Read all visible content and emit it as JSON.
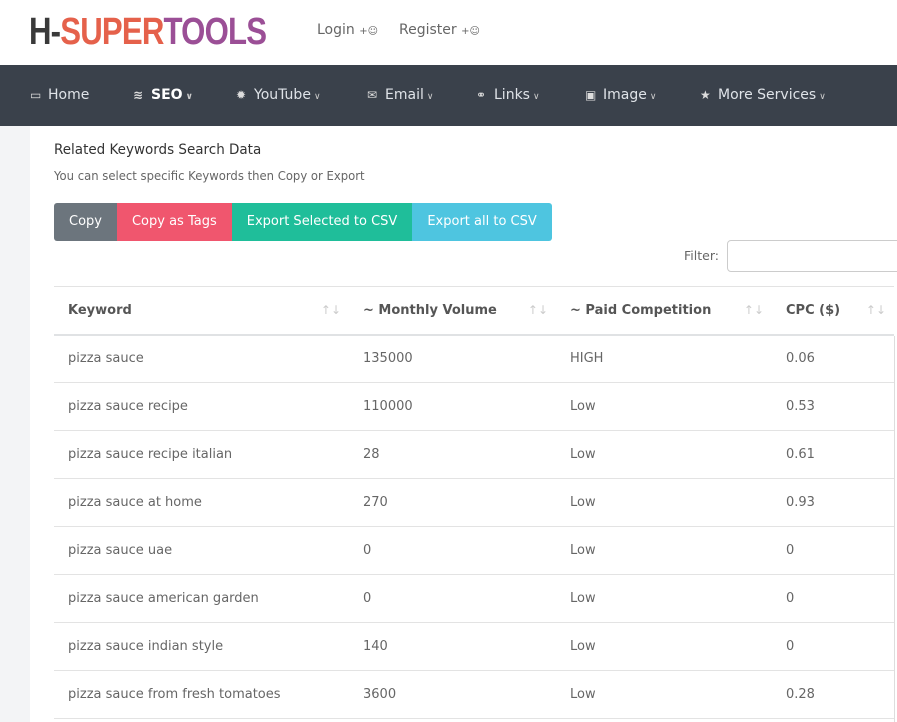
{
  "brand": {
    "part1": "H-",
    "part2": "SUPER",
    "part3": "TOOLS"
  },
  "auth": {
    "login": "Login",
    "register": "Register"
  },
  "nav": [
    {
      "label": "Home",
      "icon": "monitor-icon"
    },
    {
      "label": "SEO",
      "icon": "chart-icon",
      "active": true
    },
    {
      "label": "YouTube",
      "icon": "gear-icon"
    },
    {
      "label": "Email",
      "icon": "envelope-icon"
    },
    {
      "label": "Links",
      "icon": "link-icon"
    },
    {
      "label": "Image",
      "icon": "image-icon"
    },
    {
      "label": "More Services",
      "icon": "star-icon"
    }
  ],
  "section": {
    "title": "Related Keywords Search Data",
    "subtitle": "You can select specific Keywords then Copy or Export"
  },
  "buttons": {
    "copy": "Copy",
    "copy_tags": "Copy as Tags",
    "export_selected": "Export Selected to CSV",
    "export_all": "Export all to CSV"
  },
  "colors": {
    "copy": "#6c757d",
    "copy_tags": "#f0566e",
    "export_selected": "#1fbe9a",
    "export_all": "#4ec5e0",
    "nav": "#3a414b"
  },
  "filter": {
    "label": "Filter:",
    "value": ""
  },
  "table": {
    "columns": [
      "Keyword",
      "~ Monthly Volume",
      "~ Paid Competition",
      "CPC ($)"
    ],
    "rows": [
      [
        "pizza sauce",
        "135000",
        "HIGH",
        "0.06"
      ],
      [
        "pizza sauce recipe",
        "110000",
        "Low",
        "0.53"
      ],
      [
        "pizza sauce recipe italian",
        "28",
        "Low",
        "0.61"
      ],
      [
        "pizza sauce at home",
        "270",
        "Low",
        "0.93"
      ],
      [
        "pizza sauce uae",
        "0",
        "Low",
        "0"
      ],
      [
        "pizza sauce american garden",
        "0",
        "Low",
        "0"
      ],
      [
        "pizza sauce indian style",
        "140",
        "Low",
        "0"
      ],
      [
        "pizza sauce from fresh tomatoes",
        "3600",
        "Low",
        "0.28"
      ]
    ]
  }
}
